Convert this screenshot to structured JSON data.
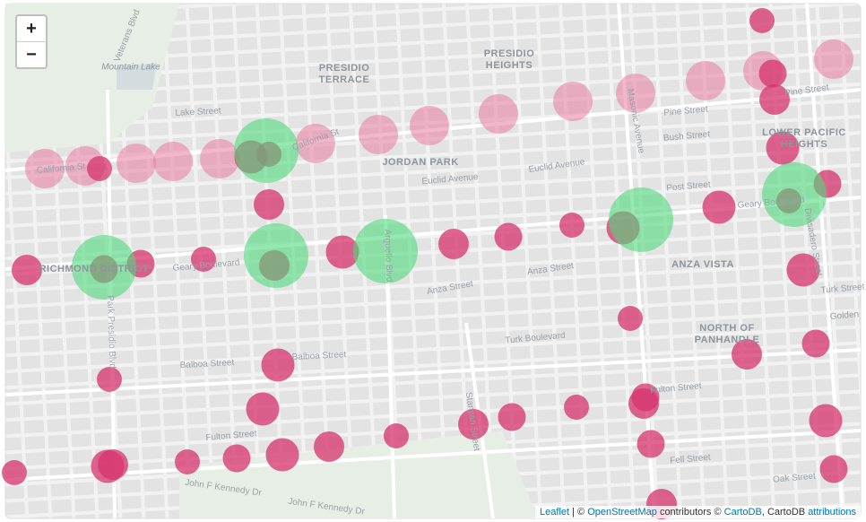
{
  "controls": {
    "zoom_in": "+",
    "zoom_out": "−"
  },
  "places": [
    "PRESIDIO TERRACE",
    "PRESIDIO HEIGHTS",
    "JORDAN PARK",
    "LOWER PACIFIC HEIGHTS",
    "ANZA VISTA",
    "NORTH OF PANHANDLE",
    "RICHMOND DISTRICT",
    "Mountain Lake"
  ],
  "streets": [
    "Lake Street",
    "California St",
    "California St",
    "Euclid Avenue",
    "Geary Boulevard",
    "Geary Boulevard",
    "Anza Street",
    "Anza Street",
    "Turk Boulevard",
    "Balboa Street",
    "Balboa Street",
    "Fulton Street",
    "Fulton Street",
    "Fell Street",
    "Oak Street",
    "Pine Street",
    "Bush Street",
    "Post Street",
    "Masonic Avenue",
    "Arguello Blvd",
    "Park Presidio Blvd",
    "Stanyan Street",
    "Divisadero Street",
    "John F Kennedy Dr",
    "John F Kennedy Dr",
    "Veterans Blvd",
    "Turk Street",
    "Golden",
    "Pine Street",
    "Euclid Avenue"
  ],
  "attribution": {
    "leaflet": "Leaflet",
    "sep": "| ©",
    "osm": "OpenStreetMap",
    "contrib": "contributors ©",
    "carto": "CartoDB",
    "carto2": ", CartoDB",
    "attrib": "attributions"
  }
}
